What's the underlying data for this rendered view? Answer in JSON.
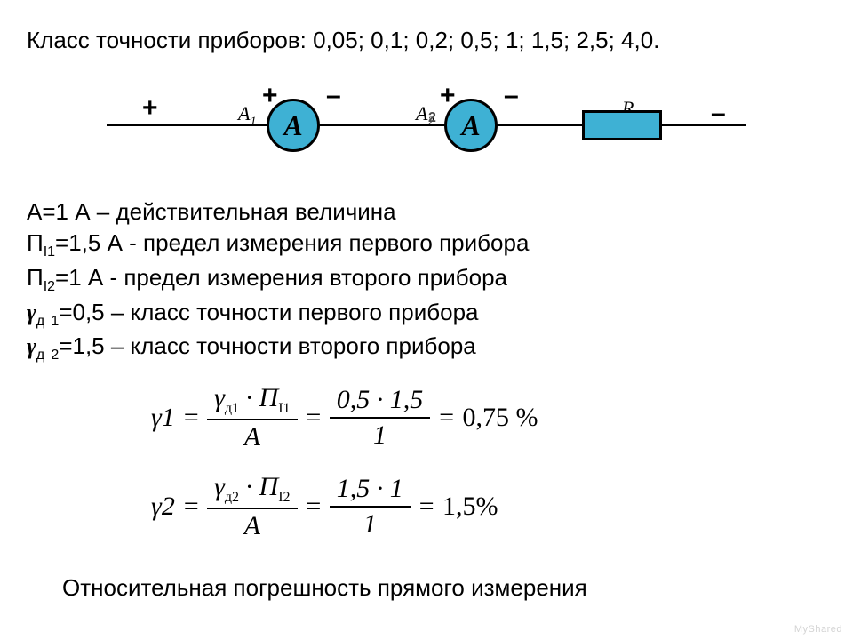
{
  "title": "Класс точности приборов: 0,05; 0,1; 0,2; 0,5; 1; 1,5; 2,5; 4,0.",
  "circuit": {
    "ammeter_symbol": "А",
    "label_a1": "A",
    "label_a1_sub": "1",
    "label_a2": "A",
    "label_a2_sub": "2",
    "overlay_a2": "2",
    "label_r": "R",
    "sign_plus": "+",
    "sign_minus": "–",
    "colors": {
      "component_fill": "#3eb1d4",
      "wire": "#000000",
      "border": "#000000"
    }
  },
  "lines": {
    "l1": "A=1 А – действительная величина",
    "l2_pre": "П",
    "l2_sub": "I1",
    "l2_post": "=1,5 А - предел измерения первого прибора",
    "l3_pre": "П",
    "l3_sub": "I2",
    "l3_post": "=1 А - предел измерения второго прибора",
    "l4_sym": "γ",
    "l4_sub1": "д",
    "l4_sub2": "1",
    "l4_post": "=0,5 – класс точности первого прибора",
    "l5_sub2": "2",
    "l5_post": "=1,5 – класс точности второго прибора"
  },
  "formulas": {
    "f1": {
      "lhs": "γ1",
      "num1_a": "γ",
      "num1_a_sub": "д1",
      "num1_dot": "·",
      "num1_b": "Π",
      "num1_b_sub": "I1",
      "den1": "A",
      "num2": "0,5 · 1,5",
      "den2": "1",
      "rhs": "0,75 %"
    },
    "f2": {
      "lhs": "γ2",
      "num1_a": "γ",
      "num1_a_sub": "д2",
      "num1_dot": "·",
      "num1_b": "Π",
      "num1_b_sub": "I2",
      "den1": "A",
      "num2": "1,5 · 1",
      "den2": "1",
      "rhs": "1,5%"
    },
    "eq": "="
  },
  "conclusion": "Относительная погрешность прямого измерения",
  "watermark": "MyShared"
}
